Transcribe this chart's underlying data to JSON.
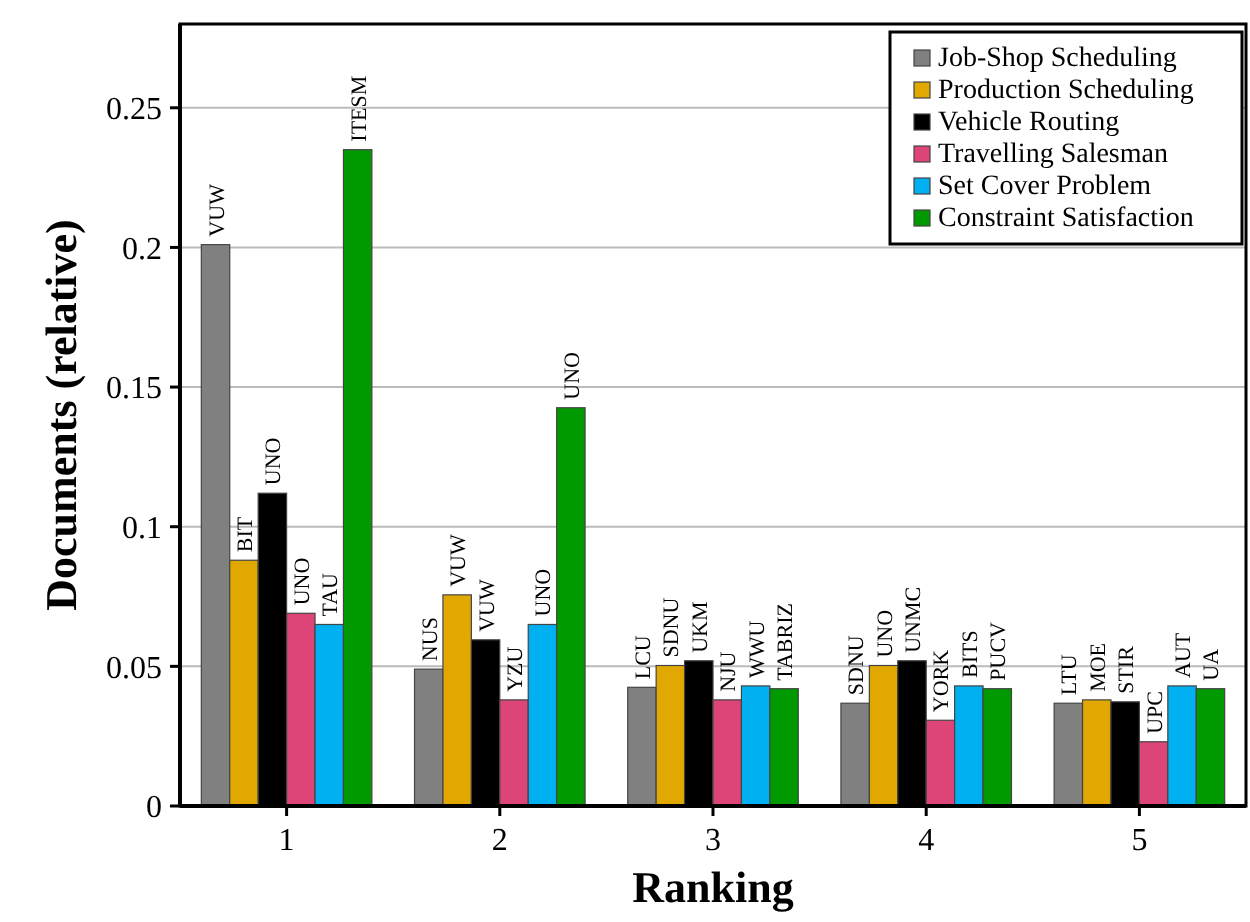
{
  "chart_data": {
    "type": "bar",
    "xlabel": "Ranking",
    "ylabel": "Documents (relative)",
    "categories": [
      "1",
      "2",
      "3",
      "4",
      "5"
    ],
    "series": [
      {
        "name": "Job-Shop Scheduling",
        "color": "#808080",
        "values": [
          0.201,
          0.049,
          0.0425,
          0.0368,
          0.0368
        ],
        "value_labels": [
          "VUW",
          "NUS",
          "LCU",
          "SDNU",
          "LTU"
        ]
      },
      {
        "name": "Production Scheduling",
        "color": "#e0a800",
        "values": [
          0.088,
          0.0756,
          0.0503,
          0.0503,
          0.038
        ],
        "value_labels": [
          "BIT",
          "VUW",
          "SDNU",
          "UNO",
          "MOE"
        ]
      },
      {
        "name": "Vehicle Routing",
        "color": "#000000",
        "values": [
          0.112,
          0.0595,
          0.052,
          0.052,
          0.0373
        ],
        "value_labels": [
          "UNO",
          "VUW",
          "UKM",
          "UNMC",
          "STIR"
        ]
      },
      {
        "name": "Travelling Salesman",
        "color": "#dd4477",
        "values": [
          0.069,
          0.038,
          0.038,
          0.0307,
          0.023
        ],
        "value_labels": [
          "UNO",
          "YZU",
          "NJU",
          "YORK",
          "UPC"
        ]
      },
      {
        "name": "Set Cover Problem",
        "color": "#00b0f0",
        "values": [
          0.065,
          0.065,
          0.043,
          0.043,
          0.043
        ],
        "value_labels": [
          "TAU",
          "UNO",
          "WWU",
          "BITS",
          "AUT"
        ]
      },
      {
        "name": "Constraint Satisfaction",
        "color": "#009900",
        "values": [
          0.235,
          0.1426,
          0.042,
          0.042,
          0.042
        ],
        "value_labels": [
          "ITESM",
          "UNO",
          "TABRIZ",
          "PUCV",
          "UA"
        ]
      }
    ],
    "ylim": [
      0,
      0.28
    ],
    "yticks": [
      0,
      0.05,
      0.1,
      0.15,
      0.2,
      0.25
    ],
    "grid": "y",
    "legend": "top right"
  }
}
